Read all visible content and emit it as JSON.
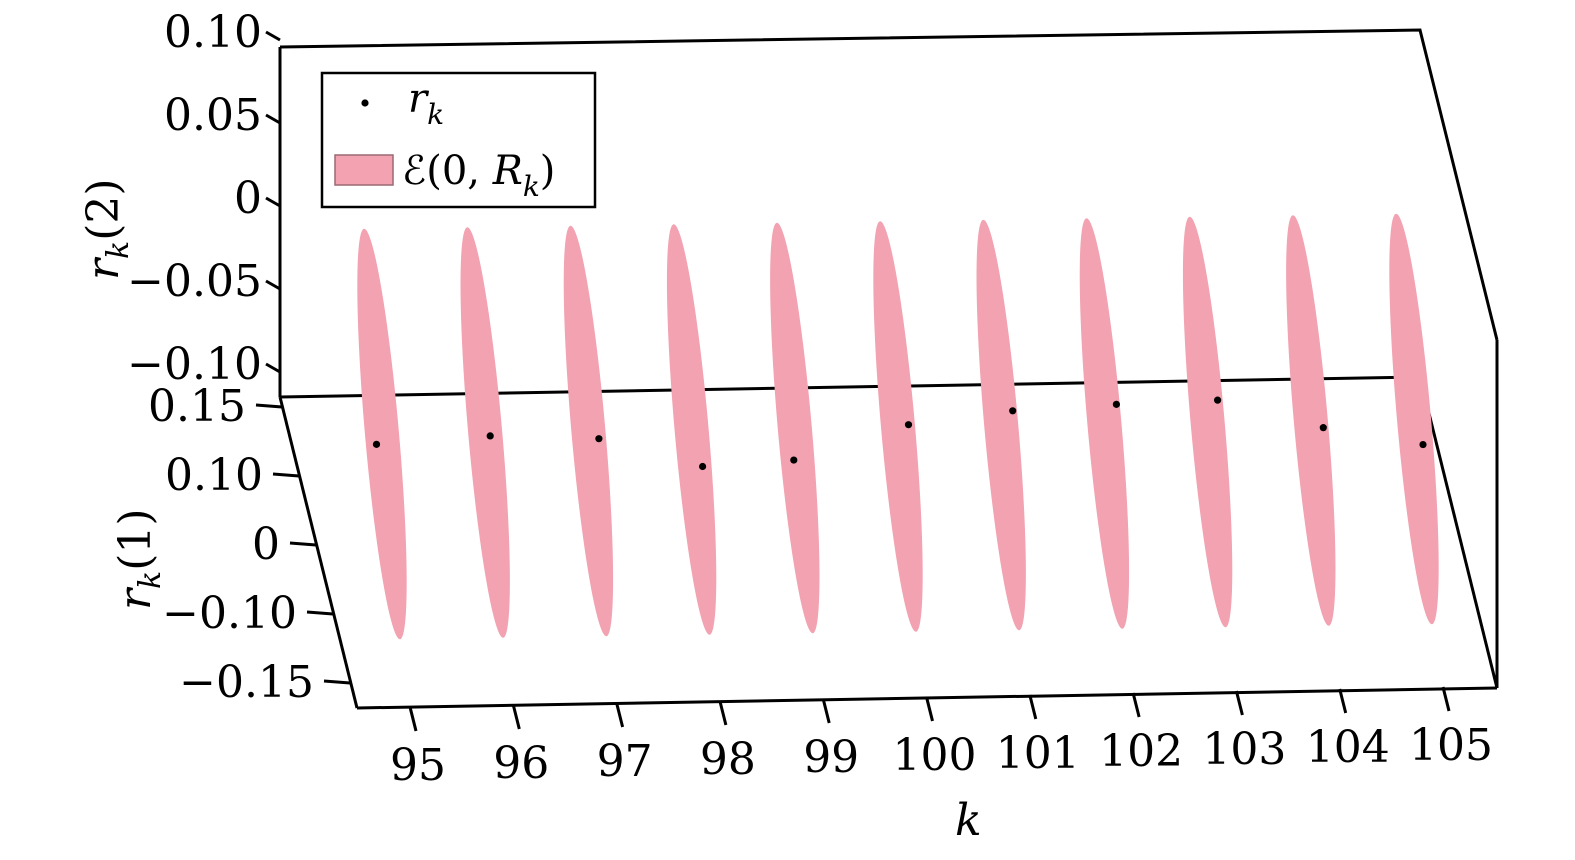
{
  "chart_data": {
    "type": "scatter",
    "projection": "3d",
    "x_axis": {
      "label": "k",
      "ticks": [
        "95",
        "96",
        "97",
        "98",
        "99",
        "100",
        "101",
        "102",
        "103",
        "104",
        "105"
      ],
      "range": [
        94.6,
        105.1
      ]
    },
    "y_axis": {
      "label_base": "r",
      "label_sub": "k",
      "label_arg": "(1)",
      "ticks": [
        "0.15",
        "0.10",
        "0",
        "−0.10",
        "−0.15"
      ],
      "range": [
        -0.15,
        0.15
      ]
    },
    "z_axis": {
      "label_base": "r",
      "label_sub": "k",
      "label_arg": "(2)",
      "ticks": [
        "0.10",
        "0.05",
        "0",
        "−0.05",
        "−0.10"
      ],
      "range": [
        -0.1,
        0.1
      ]
    },
    "legend": {
      "position": "top-left",
      "entries": [
        {
          "kind": "marker",
          "label_base": "r",
          "label_sub": "k"
        },
        {
          "kind": "patch",
          "label_pre": "ℰ(0, ",
          "label_base": "R",
          "label_sub": "k",
          "label_post": ")",
          "color": "#f2a2b0"
        }
      ]
    },
    "points": [
      {
        "k": 95,
        "r1": 0.065,
        "r2": -0.165
      },
      {
        "k": 96,
        "r1": -0.04,
        "r2": -0.028
      },
      {
        "k": 97,
        "r1": -0.095,
        "r2": 0.012
      },
      {
        "k": 98,
        "r1": -0.1,
        "r2": -0.1
      },
      {
        "k": 99,
        "r1": 0.02,
        "r2": -0.205
      },
      {
        "k": 100,
        "r1": -0.095,
        "r2": 0.05
      },
      {
        "k": 101,
        "r1": -0.105,
        "r2": 0.11
      },
      {
        "k": 102,
        "r1": -0.11,
        "r2": 0.135
      },
      {
        "k": 103,
        "r1": -0.09,
        "r2": 0.125
      },
      {
        "k": 104,
        "r1": -0.115,
        "r2": 0.035
      },
      {
        "k": 105,
        "r1": -0.08,
        "r2": -0.075
      }
    ],
    "ellipsoids": {
      "k": [
        95,
        96,
        97,
        98,
        99,
        100,
        101,
        102,
        103,
        104,
        105
      ],
      "color": "#f2a2b0"
    }
  }
}
